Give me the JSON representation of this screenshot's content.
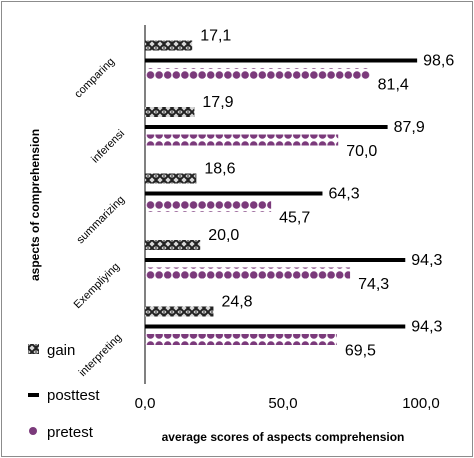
{
  "chart_data": {
    "type": "bar",
    "orientation": "horizontal",
    "categories": [
      "comparing",
      "inferensi",
      "summarizing",
      "Exempliying",
      "interpreting"
    ],
    "series": [
      {
        "name": "gain",
        "values": [
          17.1,
          17.9,
          18.6,
          20.0,
          24.8
        ],
        "labels": [
          "17,1",
          "17,9",
          "18,6",
          "20,0",
          "24,8"
        ],
        "color": "#3a3a3a",
        "pattern": "cross-hatch"
      },
      {
        "name": "posttest",
        "values": [
          98.6,
          87.9,
          64.3,
          94.3,
          94.3
        ],
        "labels": [
          "98,6",
          "87,9",
          "64,3",
          "94,3",
          "94,3"
        ],
        "color": "#000000",
        "pattern": "solid"
      },
      {
        "name": "pretest",
        "values": [
          81.4,
          70.0,
          45.7,
          74.3,
          69.5
        ],
        "labels": [
          "81,4",
          "70,0",
          "45,7",
          "74,3",
          "69,5"
        ],
        "color": "#7b3a7b",
        "pattern": "dots"
      }
    ],
    "xlim": [
      0,
      100
    ],
    "xticks": [
      "0,0",
      "50,0",
      "100,0"
    ],
    "xlabel": "average scores of aspects comprehension",
    "ylabel": "aspects of comprehension",
    "legend": "bottom-left",
    "grid": false
  }
}
